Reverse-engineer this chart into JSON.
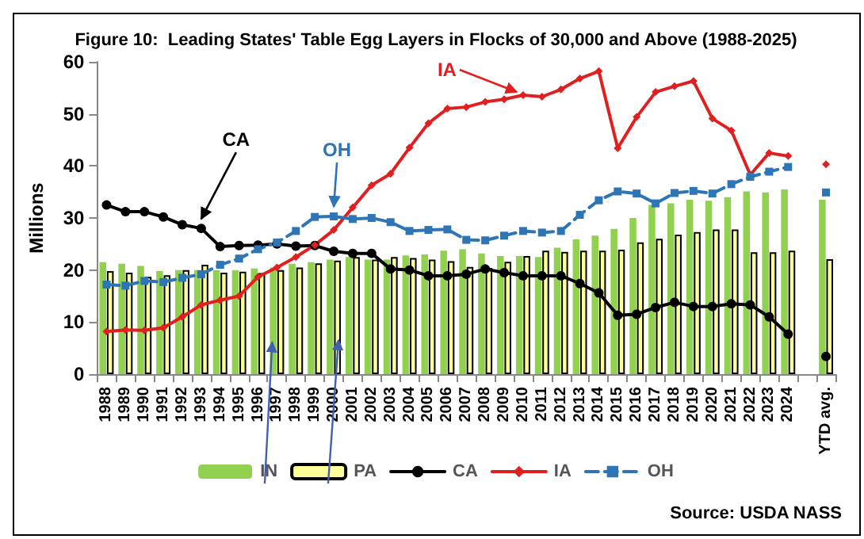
{
  "chart_data": {
    "type": "bar",
    "title": "Figure 10:  Leading States' Table Egg Layers in Flocks of 30,000 and Above (1988-2025)",
    "ylabel": "Millions",
    "categories": [
      "1988",
      "1989",
      "1990",
      "1991",
      "1992",
      "1993",
      "1994",
      "1995",
      "1996",
      "1997",
      "1998",
      "1999",
      "2000",
      "2001",
      "2002",
      "2003",
      "2004",
      "2005",
      "2006",
      "2007",
      "2008",
      "2009",
      "2010",
      "2011",
      "2012",
      "2013",
      "2014",
      "2015",
      "2016",
      "2017",
      "2018",
      "2019",
      "2020",
      "2021",
      "2022",
      "2023",
      "2024",
      null,
      "YTD avg."
    ],
    "ylim": [
      0,
      60
    ],
    "yticks": [
      0,
      10,
      20,
      30,
      40,
      50,
      60
    ],
    "grid": false,
    "legend": "bottom",
    "series": [
      {
        "name": "IN",
        "color": "#92d050",
        "values": [
          21.5,
          21.2,
          20.8,
          19.8,
          20.0,
          20.0,
          20.0,
          20.0,
          20.3,
          20.5,
          21.2,
          21.5,
          22.0,
          22.5,
          22.0,
          22.0,
          22.8,
          23.0,
          23.7,
          24.0,
          23.2,
          22.7,
          22.7,
          22.5,
          24.3,
          25.9,
          26.6,
          27.9,
          30.0,
          32.5,
          32.8,
          33.5,
          33.3,
          34.0,
          35.1,
          34.9,
          35.5,
          null,
          33.5
        ]
      },
      {
        "name": "PA",
        "color": "#ffff99",
        "values": [
          19.8,
          19.5,
          18.7,
          19.0,
          20.0,
          21.0,
          19.5,
          19.7,
          19.4,
          20.0,
          20.5,
          21.3,
          21.8,
          22.5,
          22.0,
          22.5,
          22.3,
          22.0,
          21.7,
          20.6,
          20.4,
          21.6,
          22.7,
          23.7,
          23.5,
          23.7,
          23.7,
          23.9,
          25.3,
          26.0,
          26.8,
          27.3,
          27.8,
          27.8,
          23.4,
          23.4,
          23.7,
          null,
          22.1
        ]
      },
      {
        "name": "CA",
        "type": "line",
        "color": "#000000",
        "marker": "circle",
        "line_style": "solid",
        "values": [
          32.5,
          31.2,
          31.2,
          30.2,
          28.7,
          28.0,
          24.5,
          24.7,
          24.8,
          25.0,
          24.6,
          24.7,
          23.6,
          23.2,
          23.2,
          20.2,
          20.0,
          18.9,
          18.9,
          19.2,
          20.2,
          19.5,
          18.9,
          18.9,
          18.9,
          17.4,
          15.6,
          11.3,
          11.5,
          12.8,
          13.8,
          13.0,
          13.0,
          13.5,
          13.3,
          11.0,
          7.7,
          null,
          3.4
        ]
      },
      {
        "name": "IA",
        "type": "line",
        "color": "#e02020",
        "marker": "diamond",
        "line_style": "solid",
        "values": [
          8.2,
          8.5,
          8.4,
          8.9,
          11.0,
          13.3,
          14.2,
          15.0,
          18.7,
          20.5,
          22.5,
          24.8,
          27.7,
          32.0,
          36.3,
          38.5,
          43.5,
          48.2,
          51.0,
          51.3,
          52.3,
          52.8,
          53.6,
          53.3,
          54.7,
          56.8,
          58.2,
          43.4,
          49.4,
          54.2,
          55.3,
          56.3,
          49.1,
          46.8,
          38.3,
          42.5,
          41.9,
          null,
          40.3
        ]
      },
      {
        "name": "OH",
        "type": "line",
        "color": "#2e75b6",
        "marker": "square",
        "line_style": "dashed",
        "values": [
          17.2,
          17.0,
          17.9,
          17.7,
          18.5,
          19.2,
          21.0,
          22.2,
          24.0,
          25.3,
          27.5,
          30.2,
          30.3,
          29.8,
          30.0,
          29.2,
          27.5,
          27.7,
          27.8,
          25.8,
          25.7,
          26.6,
          27.5,
          27.2,
          27.5,
          30.6,
          33.4,
          35.1,
          34.7,
          32.8,
          34.8,
          35.2,
          34.7,
          36.5,
          37.9,
          38.9,
          39.8,
          null,
          34.9
        ]
      }
    ],
    "annotations": [
      {
        "text": "CA",
        "x": "1993",
        "y": 28.0
      },
      {
        "text": "OH",
        "x": "2000",
        "y": 30.3
      },
      {
        "text": "IA",
        "x": "2010",
        "y": 53.6
      },
      "Source:  USDA NASS"
    ]
  }
}
